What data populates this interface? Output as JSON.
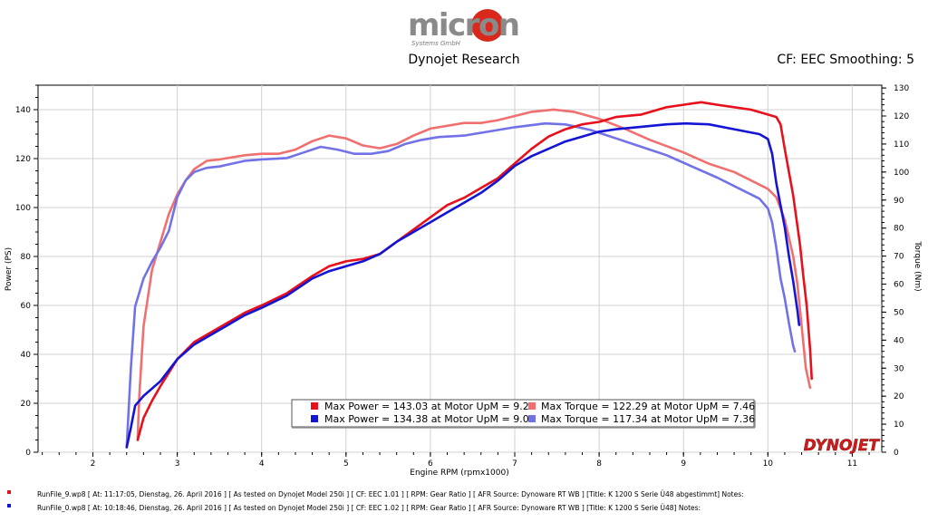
{
  "header": {
    "logo_text": "micron",
    "logo_sub": "Systems GmbH",
    "subtitle": "Dynojet Research",
    "cf_label": "CF: EEC Smoothing: 5"
  },
  "brand": {
    "dyno_logo": "DYNOJET"
  },
  "colors": {
    "power_run1": "#e8101a",
    "power_run2": "#1414d4",
    "torque_run1": "#f07070",
    "torque_run2": "#7272e8",
    "grid": "#d0d0d0"
  },
  "chart_data": {
    "type": "line",
    "title": "Dynojet Research",
    "xlabel": "Engine RPM (rpmx1000)",
    "ylabel": "Power (PS)",
    "y2label": "Torque (Nm)",
    "xlim": [
      1.35,
      11.35
    ],
    "ylim": [
      0,
      150
    ],
    "y2lim": [
      0,
      131
    ],
    "xticks": [
      2,
      3,
      4,
      5,
      6,
      7,
      8,
      9,
      10,
      11
    ],
    "yticks": [
      0,
      20,
      40,
      60,
      80,
      100,
      120,
      140
    ],
    "y2ticks": [
      0,
      10,
      20,
      30,
      40,
      50,
      60,
      70,
      80,
      90,
      100,
      110,
      120,
      130
    ],
    "grid": true,
    "series": [
      {
        "name": "Max Power = 143.03 at Motor UpM = 9.21",
        "axis": "left",
        "color": "#e8101a",
        "points": [
          [
            2.53,
            5
          ],
          [
            2.6,
            14
          ],
          [
            2.7,
            21
          ],
          [
            2.8,
            27
          ],
          [
            3.0,
            38
          ],
          [
            3.2,
            45
          ],
          [
            3.5,
            51
          ],
          [
            3.8,
            57
          ],
          [
            4.0,
            60
          ],
          [
            4.3,
            65
          ],
          [
            4.6,
            72
          ],
          [
            4.8,
            76
          ],
          [
            5.0,
            78
          ],
          [
            5.2,
            79
          ],
          [
            5.4,
            81
          ],
          [
            5.6,
            86
          ],
          [
            5.8,
            91
          ],
          [
            6.0,
            96
          ],
          [
            6.2,
            101
          ],
          [
            6.4,
            104
          ],
          [
            6.6,
            108
          ],
          [
            6.8,
            112
          ],
          [
            7.0,
            118
          ],
          [
            7.2,
            124
          ],
          [
            7.4,
            129
          ],
          [
            7.6,
            132
          ],
          [
            7.8,
            134
          ],
          [
            8.0,
            135
          ],
          [
            8.2,
            137
          ],
          [
            8.5,
            138
          ],
          [
            8.8,
            141
          ],
          [
            9.0,
            142
          ],
          [
            9.21,
            143.03
          ],
          [
            9.4,
            142
          ],
          [
            9.6,
            141
          ],
          [
            9.8,
            140
          ],
          [
            10.0,
            138
          ],
          [
            10.1,
            137
          ],
          [
            10.15,
            134
          ],
          [
            10.2,
            124
          ],
          [
            10.3,
            105
          ],
          [
            10.38,
            85
          ],
          [
            10.42,
            72
          ],
          [
            10.46,
            60
          ],
          [
            10.5,
            42
          ],
          [
            10.52,
            30
          ]
        ]
      },
      {
        "name": "Max Power = 134.38 at Motor UpM = 9.03",
        "axis": "left",
        "color": "#1414d4",
        "points": [
          [
            2.4,
            2
          ],
          [
            2.45,
            10
          ],
          [
            2.5,
            19
          ],
          [
            2.6,
            23
          ],
          [
            2.8,
            29
          ],
          [
            3.0,
            38
          ],
          [
            3.2,
            44
          ],
          [
            3.5,
            50
          ],
          [
            3.8,
            56
          ],
          [
            4.0,
            59
          ],
          [
            4.3,
            64
          ],
          [
            4.6,
            71
          ],
          [
            4.8,
            74
          ],
          [
            5.0,
            76
          ],
          [
            5.2,
            78
          ],
          [
            5.4,
            81
          ],
          [
            5.6,
            86
          ],
          [
            5.8,
            90
          ],
          [
            6.0,
            94
          ],
          [
            6.2,
            98
          ],
          [
            6.4,
            102
          ],
          [
            6.6,
            106
          ],
          [
            6.8,
            111
          ],
          [
            7.0,
            117
          ],
          [
            7.2,
            121
          ],
          [
            7.4,
            124
          ],
          [
            7.6,
            127
          ],
          [
            7.8,
            129
          ],
          [
            8.0,
            131
          ],
          [
            8.2,
            132
          ],
          [
            8.5,
            133
          ],
          [
            8.8,
            134
          ],
          [
            9.03,
            134.38
          ],
          [
            9.3,
            134
          ],
          [
            9.6,
            132
          ],
          [
            9.9,
            130
          ],
          [
            10.0,
            128
          ],
          [
            10.05,
            122
          ],
          [
            10.1,
            110
          ],
          [
            10.2,
            92
          ],
          [
            10.25,
            80
          ],
          [
            10.3,
            70
          ],
          [
            10.35,
            58
          ],
          [
            10.37,
            52
          ]
        ]
      },
      {
        "name": "Max Torque = 122.29 at Motor UpM = 7.46",
        "axis": "right",
        "color": "#f07070",
        "points": [
          [
            2.53,
            5
          ],
          [
            2.55,
            20
          ],
          [
            2.6,
            45
          ],
          [
            2.7,
            65
          ],
          [
            2.8,
            75
          ],
          [
            2.9,
            85
          ],
          [
            3.0,
            92
          ],
          [
            3.1,
            97
          ],
          [
            3.2,
            101
          ],
          [
            3.35,
            104
          ],
          [
            3.5,
            104.5
          ],
          [
            3.8,
            106
          ],
          [
            4.0,
            106.5
          ],
          [
            4.2,
            106.5
          ],
          [
            4.4,
            108
          ],
          [
            4.6,
            111
          ],
          [
            4.8,
            113
          ],
          [
            5.0,
            112
          ],
          [
            5.2,
            109.5
          ],
          [
            5.4,
            108.5
          ],
          [
            5.6,
            110
          ],
          [
            5.8,
            113
          ],
          [
            6.0,
            115.5
          ],
          [
            6.2,
            116.5
          ],
          [
            6.4,
            117.5
          ],
          [
            6.6,
            117.5
          ],
          [
            6.8,
            118.5
          ],
          [
            7.0,
            120
          ],
          [
            7.2,
            121.5
          ],
          [
            7.46,
            122.29
          ],
          [
            7.7,
            121.5
          ],
          [
            8.0,
            119
          ],
          [
            8.3,
            115.5
          ],
          [
            8.6,
            111.5
          ],
          [
            9.0,
            107
          ],
          [
            9.3,
            103
          ],
          [
            9.6,
            100
          ],
          [
            9.8,
            97
          ],
          [
            10.0,
            94
          ],
          [
            10.1,
            91
          ],
          [
            10.2,
            83
          ],
          [
            10.3,
            70
          ],
          [
            10.35,
            60
          ],
          [
            10.4,
            45
          ],
          [
            10.45,
            30
          ],
          [
            10.5,
            23
          ]
        ]
      },
      {
        "name": "Max Torque = 117.34 at Motor UpM = 7.36",
        "axis": "right",
        "color": "#7272e8",
        "points": [
          [
            2.4,
            2
          ],
          [
            2.45,
            30
          ],
          [
            2.5,
            52
          ],
          [
            2.6,
            62
          ],
          [
            2.7,
            68
          ],
          [
            2.8,
            73
          ],
          [
            2.9,
            79
          ],
          [
            3.0,
            91
          ],
          [
            3.1,
            97
          ],
          [
            3.2,
            100
          ],
          [
            3.35,
            101.5
          ],
          [
            3.5,
            102
          ],
          [
            3.8,
            104
          ],
          [
            4.0,
            104.5
          ],
          [
            4.3,
            105
          ],
          [
            4.5,
            107
          ],
          [
            4.7,
            109
          ],
          [
            4.9,
            108
          ],
          [
            5.1,
            106.5
          ],
          [
            5.3,
            106.5
          ],
          [
            5.5,
            107.5
          ],
          [
            5.7,
            110
          ],
          [
            5.9,
            111.5
          ],
          [
            6.1,
            112.5
          ],
          [
            6.4,
            113
          ],
          [
            6.7,
            114.5
          ],
          [
            7.0,
            116
          ],
          [
            7.36,
            117.34
          ],
          [
            7.6,
            117
          ],
          [
            7.9,
            115
          ],
          [
            8.2,
            112
          ],
          [
            8.5,
            109
          ],
          [
            8.8,
            106
          ],
          [
            9.1,
            102
          ],
          [
            9.4,
            98
          ],
          [
            9.7,
            93.5
          ],
          [
            9.9,
            90.5
          ],
          [
            10.0,
            87
          ],
          [
            10.05,
            82
          ],
          [
            10.1,
            73
          ],
          [
            10.15,
            62
          ],
          [
            10.2,
            55
          ],
          [
            10.25,
            46
          ],
          [
            10.3,
            38
          ],
          [
            10.32,
            36
          ]
        ]
      }
    ]
  },
  "legend": {
    "items": [
      {
        "label": "Max Power = 143.03 at Motor UpM = 9.21",
        "color": "#e8101a"
      },
      {
        "label": "Max Torque = 122.29 at Motor UpM = 7.46",
        "color": "#f07070"
      },
      {
        "label": "Max Power = 134.38 at Motor UpM = 9.03",
        "color": "#1414d4"
      },
      {
        "label": "Max Torque = 117.34 at Motor UpM = 7.36",
        "color": "#7272e8"
      }
    ]
  },
  "footer": {
    "rows": [
      {
        "text": "RunFile_9.wp8  [  At:  11:17:05,  Dienstag,  26.  April  2016  ]  [  As  tested  on  Dynojet  Model  250i  ]  [  CF:  EEC  1.01  ]  [  RPM:  Gear  Ratio  ]  [  AFR  Source:  Dynoware  RT  WB  ]  [Title:  K  1200  S  Serie   Ü48  abgestimmt]   Notes:",
        "color": "#e8101a"
      },
      {
        "text": "RunFile_0.wp8  [  At:  10:18:46,  Dienstag,  26.  April  2016  ]  [  As  tested  on  Dynojet  Model  250i  ]  [  CF:  EEC  1.02  ]  [  RPM:  Gear  Ratio  ]  [  AFR  Source:  Dynoware  RT  WB  ]  [Title:  K  1200  S  Serie   Ü48]   Notes:",
        "color": "#1414d4"
      }
    ]
  }
}
